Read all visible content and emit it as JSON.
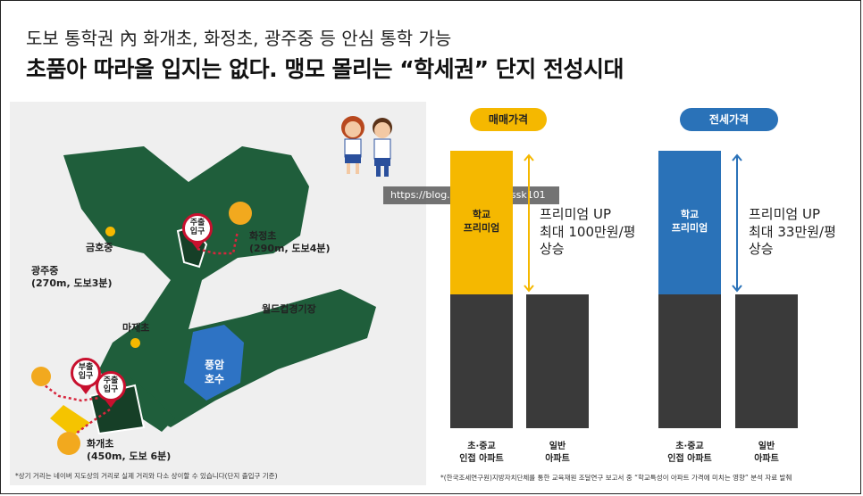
{
  "header": {
    "subtitle": "도보 통학권 內 화개초, 화정초, 광주중 등 안심 통학 가능",
    "title": "초품아 따라올 입지는 없다. 맹모 몰리는 “학세권” 단지 전성시대"
  },
  "map": {
    "labels": {
      "geumho": "금호중",
      "gwangju_name": "광주중",
      "gwangju_dist": "(270m, 도보3분)",
      "hwajeong_name": "화정초",
      "hwajeong_dist": "(290m, 도보4분)",
      "worldcup": "월드컵경기장",
      "majae": "마재초",
      "hwagae_name": "화개초",
      "hwagae_dist": "(450m, 도보 6분)",
      "lake_1": "풍암",
      "lake_2": "호수"
    },
    "pins": {
      "main_top": [
        "주출",
        "입구"
      ],
      "sub": [
        "부출",
        "입구"
      ],
      "main_bottom": [
        "주출",
        "입구"
      ]
    },
    "footnote": "*상기 거리는 네이버 지도상의 거리로 실제 거리와 다소 상이할 수 있습니다(단지 출입구 기준)"
  },
  "watermark": "https://blog.naver.com/bssk101",
  "charts": {
    "sale": {
      "pill_label": "매매가격",
      "premium_label": [
        "학교",
        "프리미엄"
      ],
      "note": [
        "프리미엄 UP",
        "최대 100만원/평",
        "상승"
      ],
      "x_labels": [
        [
          "초·중교",
          "인접 아파트"
        ],
        [
          "일반",
          "아파트"
        ]
      ],
      "color": "#f5b800"
    },
    "rent": {
      "pill_label": "전세가격",
      "premium_label": [
        "학교",
        "프리미엄"
      ],
      "note": [
        "프리미엄 UP",
        "최대 33만원/평",
        "상승"
      ],
      "x_labels": [
        [
          "초·중교",
          "인접 아파트"
        ],
        [
          "일반",
          "아파트"
        ]
      ],
      "color": "#2a72b8"
    },
    "footnote": "*(한국조세연구원)지방자치단체를 통한 교육재원 조달연구 보고서 중 “학교특성이 아파트 가격에 미치는 영향” 분석 자료 발췌"
  },
  "colors": {
    "green_dark": "#1f5e3b",
    "green_darker": "#163f27",
    "lake": "#2e73c4",
    "route": "#d7263d",
    "bar_gray": "#3a3a3a"
  }
}
